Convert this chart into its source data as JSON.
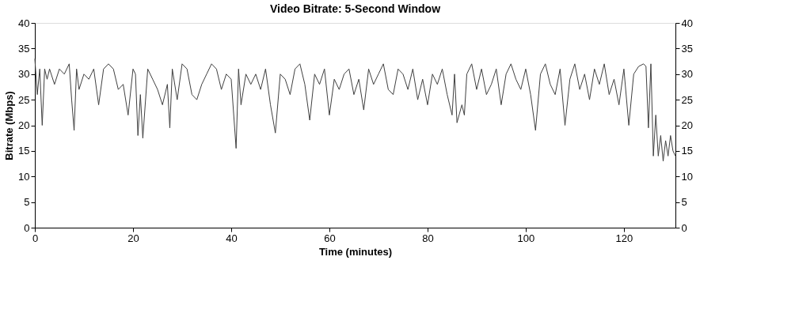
{
  "chart_data": {
    "type": "line",
    "title": "Video Bitrate: 5-Second Window",
    "xlabel": "Time (minutes)",
    "ylabel": "Bitrate (Mbps)",
    "y2label": null,
    "x": [
      0,
      0.5,
      1,
      1.5,
      2,
      2.5,
      3,
      4,
      5,
      6,
      7,
      7.5,
      8,
      8.5,
      9,
      10,
      11,
      12,
      13,
      14,
      15,
      16,
      17,
      18,
      19,
      20,
      20.5,
      21,
      21.5,
      22,
      23,
      24,
      25,
      26,
      27,
      27.5,
      28,
      29,
      30,
      31,
      32,
      33,
      34,
      35,
      36,
      37,
      38,
      39,
      40,
      41,
      41.5,
      42,
      43,
      44,
      45,
      46,
      47,
      48,
      49,
      50,
      51,
      52,
      53,
      54,
      55,
      56,
      57,
      58,
      59,
      60,
      61,
      62,
      63,
      64,
      65,
      66,
      67,
      68,
      69,
      70,
      71,
      72,
      73,
      74,
      75,
      76,
      77,
      78,
      79,
      80,
      81,
      82,
      83,
      84,
      85,
      85.5,
      86,
      87,
      87.5,
      88,
      89,
      90,
      91,
      92,
      93,
      94,
      95,
      96,
      97,
      98,
      99,
      100,
      101,
      102,
      103,
      104,
      105,
      106,
      107,
      108,
      109,
      110,
      111,
      112,
      113,
      114,
      115,
      116,
      117,
      118,
      119,
      120,
      121,
      122,
      123,
      124,
      124.5,
      125,
      125.5,
      126,
      126.5,
      127,
      127.5,
      128,
      128.5,
      129,
      129.5,
      130,
      130.5
    ],
    "series": [
      {
        "color": "#404040",
        "values": [
          33,
          26,
          31,
          20,
          31,
          29,
          31,
          28,
          31,
          30,
          32,
          25,
          19,
          31,
          27,
          30,
          29,
          31,
          24,
          31,
          32,
          31,
          27,
          28,
          22,
          31,
          30,
          18,
          26,
          17.5,
          31,
          29,
          27,
          24,
          28,
          19.5,
          31,
          25,
          32,
          31,
          26,
          25,
          28,
          30,
          32,
          31,
          27,
          30,
          29,
          15.5,
          31,
          24,
          30,
          28,
          30,
          27,
          31,
          24,
          18.5,
          30,
          29,
          26,
          31,
          32,
          28,
          21,
          30,
          28,
          31,
          22,
          29,
          27,
          30,
          31,
          26,
          29,
          23,
          31,
          28,
          30,
          32,
          27,
          26,
          31,
          30,
          27,
          31,
          25,
          29,
          24,
          30,
          28,
          31,
          26,
          22,
          30,
          20.5,
          24,
          22,
          30,
          32,
          27,
          31,
          26,
          28,
          31,
          24,
          30,
          32,
          29,
          27,
          31,
          26,
          19,
          30,
          32,
          28,
          26,
          31,
          20,
          29,
          32,
          27,
          30,
          25,
          31,
          28,
          32,
          26,
          29,
          24,
          31,
          20,
          30,
          31.5,
          32,
          31.5,
          19.5,
          32,
          14,
          22,
          14,
          18,
          13,
          17,
          14,
          18,
          15,
          14
        ]
      }
    ],
    "xlim": [
      0,
      130.5
    ],
    "xticks": [
      0,
      20,
      40,
      60,
      80,
      100,
      120
    ],
    "ylim": [
      0,
      40
    ],
    "yticks": [
      0,
      5,
      10,
      15,
      20,
      25,
      30,
      35,
      40
    ],
    "y2lim": [
      0,
      40
    ],
    "y2ticks": [
      0,
      5,
      10,
      15,
      20,
      25,
      30,
      35,
      40
    ],
    "grid": false,
    "line_style": "solid"
  }
}
